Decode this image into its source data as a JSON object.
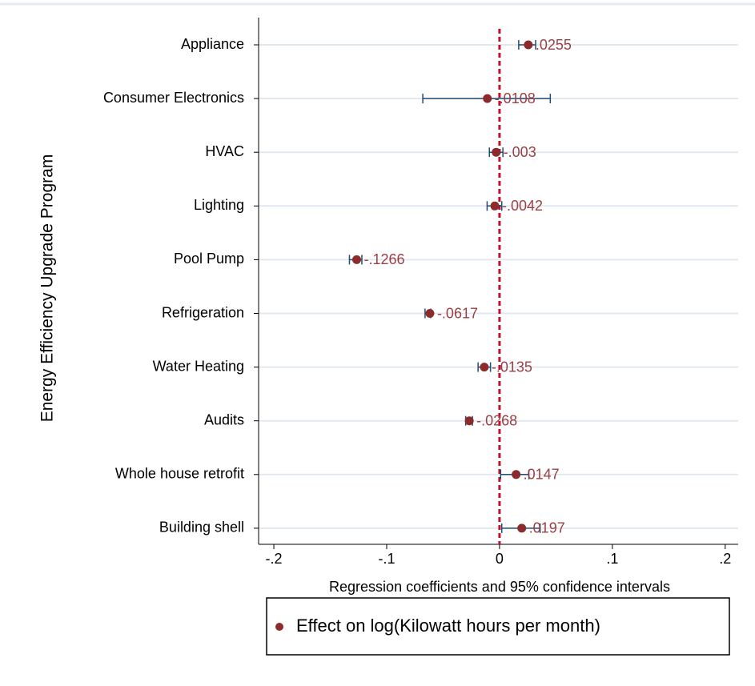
{
  "chart_data": {
    "type": "coefplot",
    "y_axis_label": "Energy Efficiency Upgrade Program",
    "x_axis_label": "Regression coefficients and 95% confidence intervals",
    "categories": [
      "Appliance",
      "Consumer Electronics",
      "HVAC",
      "Lighting",
      "Pool Pump",
      "Refrigeration",
      "Water Heating",
      "Audits",
      "Whole house retrofit",
      "Building shell"
    ],
    "series": [
      {
        "name": "Effect on log(Kilowatt hours per month)",
        "color": "#8b2b2b",
        "ci_color": "#1f4e79",
        "label_color": "#9c3f45",
        "values": [
          0.0255,
          -0.0108,
          -0.003,
          -0.0042,
          -0.1266,
          -0.0617,
          -0.0135,
          -0.0268,
          0.0147,
          0.0197
        ],
        "value_labels": [
          ".0255",
          "-.0108",
          "-.003",
          "-.0042",
          "-.1266",
          "-.0617",
          "-.0135",
          "-.0268",
          ".0147",
          ".0197"
        ],
        "ci_low": [
          0.017,
          -0.068,
          -0.009,
          -0.011,
          -0.133,
          -0.066,
          -0.019,
          -0.03,
          0.001,
          0.002
        ],
        "ci_high": [
          0.032,
          0.045,
          0.003,
          0.002,
          -0.122,
          -0.061,
          -0.008,
          -0.024,
          0.026,
          0.036
        ]
      }
    ],
    "xlim": [
      -0.2135,
      0.2115
    ],
    "xticks": [
      {
        "value": -0.2,
        "label": "-.2"
      },
      {
        "value": -0.1,
        "label": "-.1"
      },
      0,
      {
        "value": 0.1,
        "label": ".1"
      },
      {
        "value": 0.2,
        "label": ".2"
      }
    ],
    "refline": 0,
    "refline_color": "#c0122c",
    "grid": true
  }
}
